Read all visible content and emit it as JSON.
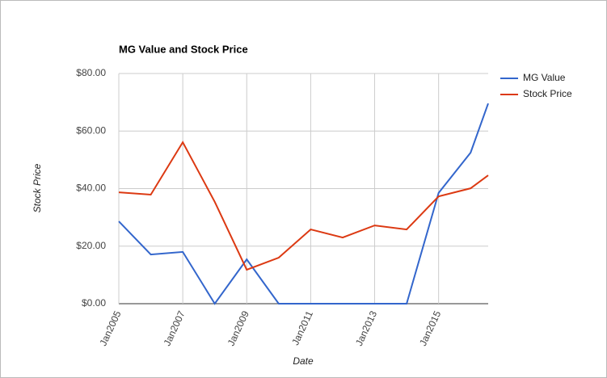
{
  "chart_data": {
    "type": "line",
    "title": "MG Value and Stock Price",
    "x_label": "Date",
    "y_label": "Stock Price",
    "x": [
      2005,
      2006,
      2007,
      2008,
      2009,
      2010,
      2011,
      2012,
      2013,
      2014,
      2015,
      2016,
      2016.55
    ],
    "xlim": [
      2005,
      2016.55
    ],
    "xticks": [
      {
        "value": 2005,
        "label": "Jan2005"
      },
      {
        "value": 2007,
        "label": "Jan2007"
      },
      {
        "value": 2009,
        "label": "Jan2009"
      },
      {
        "value": 2011,
        "label": "Jan2011"
      },
      {
        "value": 2013,
        "label": "Jan2013"
      },
      {
        "value": 2015,
        "label": "Jan2015"
      }
    ],
    "ylim": [
      0,
      80
    ],
    "yticks": [
      {
        "value": 0,
        "label": "$0.00"
      },
      {
        "value": 20,
        "label": "$20.00"
      },
      {
        "value": 40,
        "label": "$40.00"
      },
      {
        "value": 60,
        "label": "$60.00"
      },
      {
        "value": 80,
        "label": "$80.00"
      }
    ],
    "grid": true,
    "legend": "right",
    "series": [
      {
        "name": "MG Value",
        "color": "#3366cc",
        "values": [
          28.6,
          17.1,
          18.0,
          0,
          15.4,
          0,
          0,
          0,
          0,
          0,
          38.5,
          52.5,
          69.6
        ]
      },
      {
        "name": "Stock Price",
        "color": "#dc3912",
        "values": [
          38.7,
          37.9,
          56.1,
          35.4,
          11.8,
          16.0,
          25.8,
          23.0,
          27.2,
          25.8,
          37.3,
          40.1,
          44.6
        ]
      }
    ]
  }
}
